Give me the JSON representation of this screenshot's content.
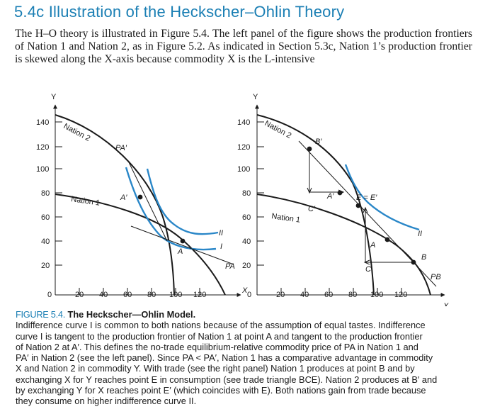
{
  "section": {
    "number": "5.4c",
    "title": "Illustration of the Heckscher–Ohlin Theory"
  },
  "intro_text": "The H–O theory is illustrated in Figure 5.4. The left panel of the figure shows the production frontiers of Nation 1 and Nation 2, as in Figure 5.2. As indicated in Section 5.3c, Nation 1’s production frontier is skewed along the X-axis because commodity X is the L-intensive",
  "figure": {
    "colors": {
      "curve": "#1a1a1a",
      "indifference": "#2a87c8",
      "accent": "#1b7fb4"
    },
    "left_panel": {
      "y_axis_label": "Y",
      "x_axis_label": "X",
      "y_ticks": [
        "140",
        "120",
        "100",
        "80",
        "60",
        "40",
        "20"
      ],
      "x_ticks": [
        "0",
        "20",
        "40",
        "60",
        "80",
        "100",
        "120"
      ],
      "labels": {
        "nation2": "Nation 2",
        "nation1": "Nation 1",
        "pa_prime": "PA′",
        "a_prime": "A′",
        "a": "A",
        "ii": "II",
        "i": "I",
        "pa": "PA"
      }
    },
    "right_panel": {
      "y_axis_label": "Y",
      "x_axis_label": "X",
      "y_ticks": [
        "140",
        "120",
        "100",
        "80",
        "60",
        "40",
        "20"
      ],
      "x_ticks": [
        "0",
        "20",
        "40",
        "60",
        "80",
        "100",
        "120"
      ],
      "labels": {
        "nation2": "Nation 2",
        "nation1": "Nation 1",
        "b_prime": "B′",
        "a_prime": "A′",
        "c_prime": "C′",
        "e_equals": "E = E′",
        "ii": "II",
        "a": "A",
        "b": "B",
        "c": "C",
        "pb": "PB"
      }
    }
  },
  "caption": {
    "label": "FIGURE 5.4.",
    "title": "The Heckscher—Ohlin Model.",
    "lines": [
      "Indifference curve I is common to both nations because of the assumption of equal tastes. Indifference",
      "curve I is tangent to the production frontier of Nation 1 at point A and tangent to the production frontier",
      "of Nation 2 at A′. This defines the no-trade equilibrium-relative commodity price of PA in Nation 1 and",
      "PA′ in Nation 2 (see the left panel). Since PA < PA′, Nation 1 has a comparative advantage in commodity",
      "X and Nation 2 in commodity Y. With trade (see the right panel) Nation 1 produces at point B and by",
      "exchanging X for Y reaches point E in consumption (see trade triangle BCE). Nation 2 produces at B′ and",
      "by exchanging Y for X reaches point E′ (which coincides with E). Both nations gain from trade because",
      "they consume on higher indifference curve II."
    ]
  }
}
